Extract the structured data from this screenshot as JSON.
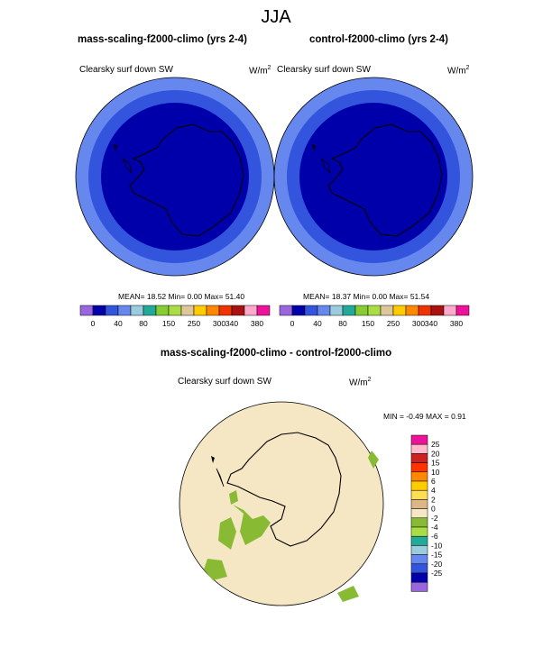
{
  "header": {
    "season": "JJA"
  },
  "panels": {
    "left": {
      "title": "mass-scaling-f2000-climo (yrs 2-4)",
      "variable": "Clearsky surf down SW",
      "unit_base": "W/m",
      "unit_exp": "2",
      "stats": "MEAN=  18.52  Min=   0.00  Max=  51.40"
    },
    "right": {
      "title": "control-f2000-climo (yrs 2-4)",
      "variable": "Clearsky surf down SW",
      "unit_base": "W/m",
      "unit_exp": "2",
      "stats": "MEAN=  18.37  Min=   0.00  Max=  51.54"
    },
    "diff": {
      "title": "mass-scaling-f2000-climo - control-f2000-climo",
      "variable": "Clearsky surf down SW",
      "unit_base": "W/m",
      "unit_exp": "2",
      "stats": "MIN =  -0.49 MAX =   0.91"
    }
  },
  "colorbar_main": {
    "colors": [
      "#9966dd",
      "#0000aa",
      "#3355dd",
      "#6688ee",
      "#99ccdd",
      "#22aa99",
      "#88cc33",
      "#aadd44",
      "#ddc699",
      "#ffcc00",
      "#ff8800",
      "#ee3300",
      "#aa1111",
      "#ffaacc",
      "#ee1199"
    ],
    "labels": [
      "0",
      "40",
      "80",
      "150",
      "250",
      "300",
      "340",
      "380"
    ]
  },
  "colorbar_diff": {
    "colors": [
      "#ee1199",
      "#ffbbcc",
      "#cc2222",
      "#ff3300",
      "#ff8800",
      "#ffcc00",
      "#ffdd55",
      "#ddb688",
      "#f5e6c4",
      "#88bb33",
      "#aadd44",
      "#22aa99",
      "#99ccdd",
      "#6688ee",
      "#3355dd",
      "#0000aa",
      "#9966dd"
    ],
    "labels": [
      "25",
      "20",
      "15",
      "10",
      "6",
      "4",
      "2",
      "0",
      "-2",
      "-4",
      "-6",
      "-10",
      "-15",
      "-20",
      "-25"
    ]
  },
  "chart_data": [
    {
      "type": "heatmap",
      "title": "mass-scaling-f2000-climo (yrs 2-4)",
      "variable": "Clearsky surf down SW",
      "units": "W/m2",
      "season": "JJA",
      "mean": 18.52,
      "min": 0.0,
      "max": 51.4,
      "levels": [
        0,
        40,
        80,
        150,
        250,
        300,
        340,
        380
      ]
    },
    {
      "type": "heatmap",
      "title": "control-f2000-climo (yrs 2-4)",
      "variable": "Clearsky surf down SW",
      "units": "W/m2",
      "season": "JJA",
      "mean": 18.37,
      "min": 0.0,
      "max": 51.54,
      "levels": [
        0,
        40,
        80,
        150,
        250,
        300,
        340,
        380
      ]
    },
    {
      "type": "heatmap",
      "title": "mass-scaling-f2000-climo - control-f2000-climo",
      "variable": "Clearsky surf down SW",
      "units": "W/m2",
      "season": "JJA",
      "min": -0.49,
      "max": 0.91,
      "levels": [
        -25,
        -20,
        -15,
        -10,
        -6,
        -4,
        -2,
        0,
        2,
        4,
        6,
        10,
        15,
        20,
        25
      ]
    }
  ]
}
